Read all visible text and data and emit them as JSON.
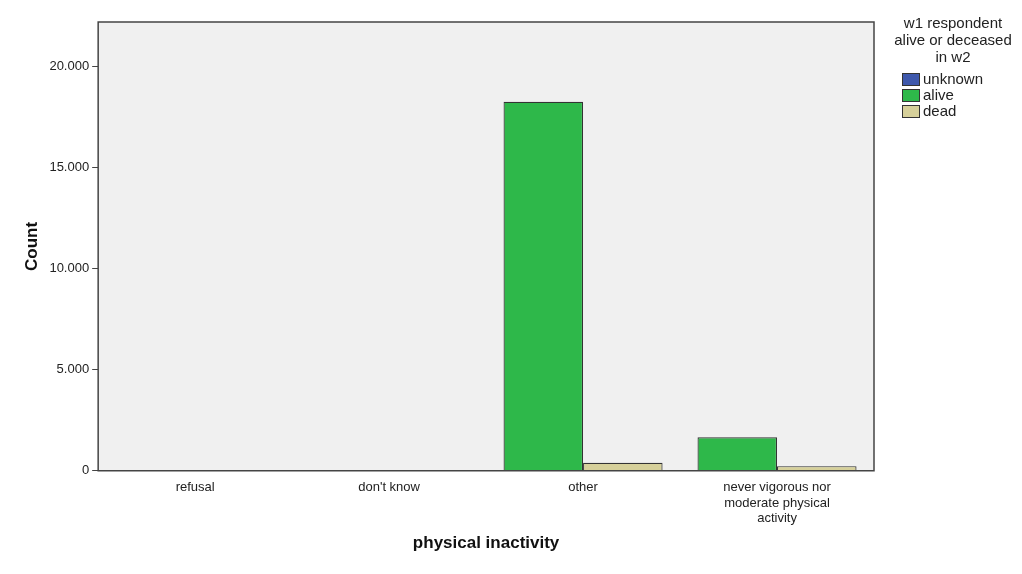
{
  "chart_data": {
    "type": "bar",
    "xlabel": "physical inactivity",
    "ylabel": "Count",
    "legend_title": "w1 respondent alive or deceased in w2",
    "legend": "top right",
    "grid": false,
    "categories": [
      "refusal",
      "don't know",
      "other",
      "never vigorous nor moderate physical activity"
    ],
    "series": [
      {
        "name": "unknown",
        "color": "#3e58ac",
        "values": [
          null,
          null,
          null,
          null
        ]
      },
      {
        "name": "alive",
        "color": "#2eb84a",
        "values": [
          0,
          0,
          18250,
          1660
        ]
      },
      {
        "name": "dead",
        "color": "#d6d09a",
        "values": [
          0,
          0,
          400,
          230
        ]
      }
    ],
    "ylim": [
      0,
      22200
    ],
    "yticks": [
      {
        "value": 0,
        "label": "0"
      },
      {
        "value": 5000,
        "label": "5.000"
      },
      {
        "value": 10000,
        "label": "10.000"
      },
      {
        "value": 15000,
        "label": "15.000"
      },
      {
        "value": 20000,
        "label": "20.000"
      }
    ]
  }
}
